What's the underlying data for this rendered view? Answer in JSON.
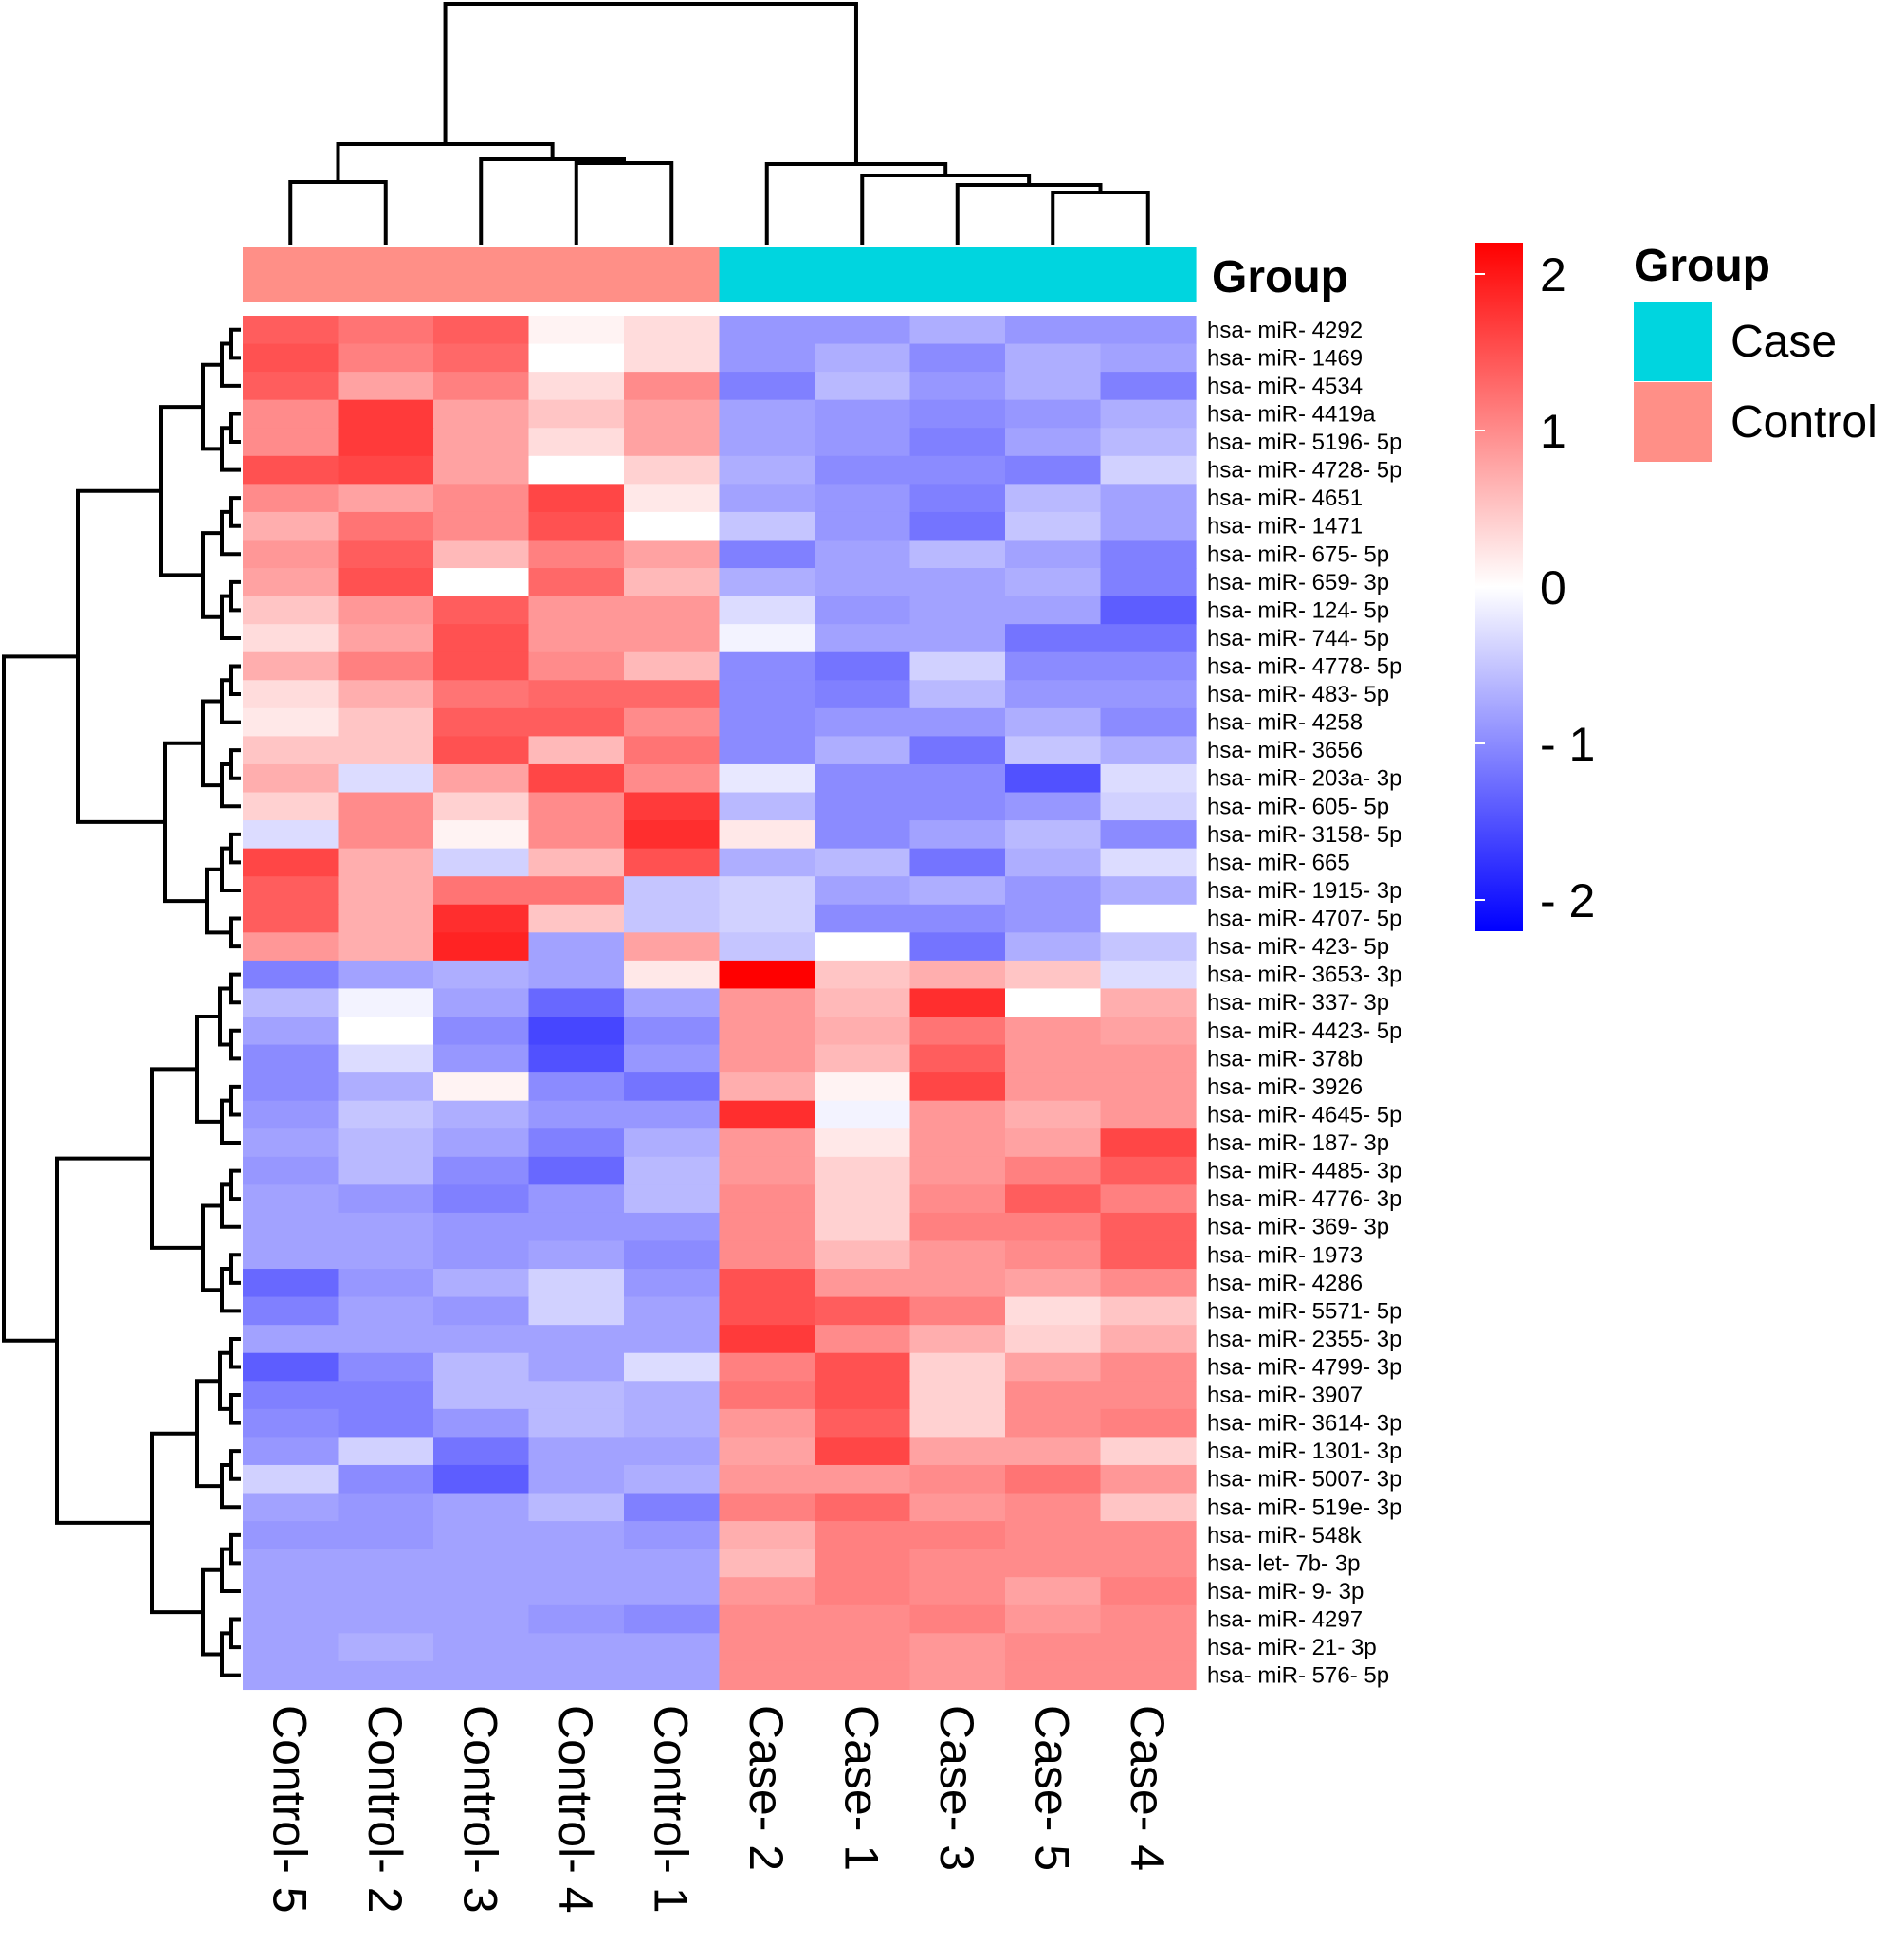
{
  "chart_data": {
    "type": "heatmap",
    "title": "",
    "columns": [
      "Control- 5",
      "Control- 2",
      "Control- 3",
      "Control- 4",
      "Control- 1",
      "Case- 2",
      "Case- 1",
      "Case- 3",
      "Case- 5",
      "Case- 4"
    ],
    "column_groups": [
      "Control",
      "Control",
      "Control",
      "Control",
      "Control",
      "Case",
      "Case",
      "Case",
      "Case",
      "Case"
    ],
    "rows": [
      "hsa- miR- 4292",
      "hsa- miR- 1469",
      "hsa- miR- 4534",
      "hsa- miR- 4419a",
      "hsa- miR- 5196- 5p",
      "hsa- miR- 4728- 5p",
      "hsa- miR- 4651",
      "hsa- miR- 1471",
      "hsa- miR- 675- 5p",
      "hsa- miR- 659- 3p",
      "hsa- miR- 124- 5p",
      "hsa- miR- 744- 5p",
      "hsa- miR- 4778- 5p",
      "hsa- miR- 483- 5p",
      "hsa- miR- 4258",
      "hsa- miR- 3656",
      "hsa- miR- 203a- 3p",
      "hsa- miR- 605- 5p",
      "hsa- miR- 3158- 5p",
      "hsa- miR- 665",
      "hsa- miR- 1915- 3p",
      "hsa- miR- 4707- 5p",
      "hsa- miR- 423- 5p",
      "hsa- miR- 3653- 3p",
      "hsa- miR- 337- 3p",
      "hsa- miR- 4423- 5p",
      "hsa- miR- 378b",
      "hsa- miR- 3926",
      "hsa- miR- 4645- 5p",
      "hsa- miR- 187- 3p",
      "hsa- miR- 4485- 3p",
      "hsa- miR- 4776- 3p",
      "hsa- miR- 369- 3p",
      "hsa- miR- 1973",
      "hsa- miR- 4286",
      "hsa- miR- 5571- 5p",
      "hsa- miR- 2355- 3p",
      "hsa- miR- 4799- 3p",
      "hsa- miR- 3907",
      "hsa- miR- 3614- 3p",
      "hsa- miR- 1301- 3p",
      "hsa- miR- 5007- 3p",
      "hsa- miR- 519e- 3p",
      "hsa- miR- 548k",
      "hsa- let- 7b- 3p",
      "hsa- miR- 9- 3p",
      "hsa- miR- 4297",
      "hsa- miR- 21- 3p",
      "hsa- miR- 576- 5p"
    ],
    "values": [
      [
        1.4,
        1.2,
        1.4,
        0.1,
        0.3,
        -0.9,
        -0.9,
        -0.7,
        -0.9,
        -0.9
      ],
      [
        1.5,
        1.1,
        1.3,
        0.0,
        0.3,
        -0.9,
        -0.7,
        -1.0,
        -0.7,
        -0.8
      ],
      [
        1.4,
        0.8,
        1.1,
        0.3,
        1.0,
        -1.1,
        -0.6,
        -0.9,
        -0.7,
        -1.1
      ],
      [
        1.0,
        1.7,
        0.8,
        0.5,
        0.8,
        -0.8,
        -0.9,
        -1.0,
        -0.9,
        -0.7
      ],
      [
        1.0,
        1.7,
        0.8,
        0.3,
        0.8,
        -0.8,
        -0.9,
        -1.1,
        -0.8,
        -0.6
      ],
      [
        1.5,
        1.6,
        0.8,
        0.0,
        0.4,
        -0.7,
        -1.0,
        -1.0,
        -1.1,
        -0.4
      ],
      [
        1.0,
        0.8,
        1.0,
        1.6,
        0.2,
        -0.8,
        -0.9,
        -1.1,
        -0.6,
        -0.8
      ],
      [
        0.7,
        1.2,
        1.0,
        1.5,
        0.0,
        -0.5,
        -0.9,
        -1.2,
        -0.5,
        -0.8
      ],
      [
        0.9,
        1.4,
        0.6,
        1.1,
        0.8,
        -1.1,
        -0.8,
        -0.6,
        -0.8,
        -1.1
      ],
      [
        0.8,
        1.5,
        0.0,
        1.3,
        0.6,
        -0.7,
        -0.8,
        -0.8,
        -0.7,
        -1.1
      ],
      [
        0.5,
        0.9,
        1.4,
        0.9,
        0.9,
        -0.3,
        -0.9,
        -0.8,
        -0.8,
        -1.4
      ],
      [
        0.3,
        0.8,
        1.5,
        0.9,
        0.9,
        -0.1,
        -0.8,
        -0.8,
        -1.2,
        -1.2
      ],
      [
        0.7,
        1.1,
        1.5,
        1.0,
        0.6,
        -1.0,
        -1.2,
        -0.4,
        -1.0,
        -1.0
      ],
      [
        0.3,
        0.7,
        1.2,
        1.3,
        1.3,
        -1.0,
        -1.1,
        -0.6,
        -0.9,
        -0.9
      ],
      [
        0.2,
        0.5,
        1.4,
        1.4,
        1.0,
        -1.0,
        -0.9,
        -0.9,
        -0.7,
        -1.0
      ],
      [
        0.5,
        0.5,
        1.5,
        0.6,
        1.2,
        -1.0,
        -0.7,
        -1.2,
        -0.5,
        -0.7
      ],
      [
        0.7,
        -0.3,
        0.8,
        1.6,
        1.0,
        -0.2,
        -1.0,
        -1.0,
        -1.5,
        -0.3
      ],
      [
        0.4,
        1.0,
        0.4,
        1.0,
        1.7,
        -0.6,
        -1.0,
        -1.0,
        -0.9,
        -0.4
      ],
      [
        -0.3,
        1.0,
        0.1,
        1.0,
        1.8,
        0.2,
        -1.0,
        -0.8,
        -0.6,
        -1.0
      ],
      [
        1.6,
        0.7,
        -0.4,
        0.6,
        1.5,
        -0.7,
        -0.6,
        -1.2,
        -0.7,
        -0.3
      ],
      [
        1.4,
        0.7,
        1.2,
        1.2,
        -0.5,
        -0.4,
        -0.8,
        -0.7,
        -0.9,
        -0.7
      ],
      [
        1.4,
        0.7,
        1.8,
        0.5,
        -0.5,
        -0.4,
        -1.0,
        -1.0,
        -0.9,
        0.0
      ],
      [
        0.9,
        0.7,
        1.9,
        -0.8,
        0.8,
        -0.5,
        0.0,
        -1.2,
        -0.7,
        -0.5
      ],
      [
        -1.1,
        -0.8,
        -0.7,
        -0.8,
        0.2,
        2.3,
        0.5,
        0.7,
        0.5,
        -0.3
      ],
      [
        -0.6,
        -0.1,
        -0.8,
        -1.3,
        -0.8,
        0.9,
        0.6,
        1.8,
        0.0,
        0.7
      ],
      [
        -0.8,
        0.0,
        -1.0,
        -1.6,
        -1.0,
        0.9,
        0.7,
        1.2,
        0.9,
        0.8
      ],
      [
        -1.0,
        -0.3,
        -0.9,
        -1.5,
        -0.9,
        0.9,
        0.6,
        1.4,
        0.9,
        0.9
      ],
      [
        -1.0,
        -0.7,
        0.1,
        -1.0,
        -1.2,
        0.7,
        0.1,
        1.6,
        0.9,
        0.9
      ],
      [
        -0.9,
        -0.5,
        -0.7,
        -0.9,
        -0.9,
        1.8,
        -0.1,
        0.9,
        0.7,
        0.9
      ],
      [
        -0.8,
        -0.6,
        -0.8,
        -1.1,
        -0.7,
        0.9,
        0.2,
        0.9,
        0.8,
        1.6
      ],
      [
        -0.9,
        -0.6,
        -1.0,
        -1.3,
        -0.6,
        0.9,
        0.4,
        0.9,
        1.1,
        1.4
      ],
      [
        -0.8,
        -0.9,
        -1.1,
        -0.9,
        -0.6,
        1.0,
        0.4,
        1.0,
        1.4,
        1.1
      ],
      [
        -0.8,
        -0.8,
        -0.9,
        -0.9,
        -0.9,
        1.0,
        0.4,
        1.1,
        1.1,
        1.4
      ],
      [
        -0.8,
        -0.8,
        -0.9,
        -0.8,
        -1.0,
        1.0,
        0.6,
        0.9,
        1.0,
        1.4
      ],
      [
        -1.3,
        -0.9,
        -0.7,
        -0.4,
        -0.9,
        1.5,
        0.9,
        0.9,
        0.8,
        1.0
      ],
      [
        -1.1,
        -0.8,
        -0.9,
        -0.4,
        -0.8,
        1.5,
        1.4,
        1.1,
        0.3,
        0.5
      ],
      [
        -0.8,
        -0.8,
        -0.8,
        -0.8,
        -0.8,
        1.7,
        1.0,
        0.7,
        0.4,
        0.7
      ],
      [
        -1.4,
        -1.0,
        -0.6,
        -0.8,
        -0.3,
        1.1,
        1.5,
        0.4,
        0.8,
        1.0
      ],
      [
        -1.1,
        -1.1,
        -0.6,
        -0.6,
        -0.7,
        1.2,
        1.5,
        0.4,
        1.0,
        1.0
      ],
      [
        -1.0,
        -1.1,
        -0.9,
        -0.6,
        -0.7,
        0.9,
        1.4,
        0.4,
        1.0,
        1.1
      ],
      [
        -0.9,
        -0.4,
        -1.2,
        -0.8,
        -0.8,
        0.8,
        1.6,
        0.8,
        0.8,
        0.4
      ],
      [
        -0.4,
        -1.0,
        -1.4,
        -0.8,
        -0.7,
        0.9,
        0.9,
        1.0,
        1.2,
        0.9
      ],
      [
        -0.8,
        -0.9,
        -0.8,
        -0.6,
        -1.1,
        1.1,
        1.3,
        0.9,
        1.0,
        0.5
      ],
      [
        -0.9,
        -0.9,
        -0.8,
        -0.8,
        -0.9,
        0.7,
        1.1,
        1.1,
        1.0,
        1.0
      ],
      [
        -0.8,
        -0.8,
        -0.8,
        -0.8,
        -0.8,
        0.6,
        1.1,
        1.0,
        1.0,
        1.0
      ],
      [
        -0.8,
        -0.8,
        -0.8,
        -0.8,
        -0.8,
        0.9,
        1.1,
        1.0,
        0.8,
        1.1
      ],
      [
        -0.8,
        -0.8,
        -0.8,
        -0.9,
        -1.0,
        1.0,
        1.0,
        1.1,
        0.9,
        1.0
      ],
      [
        -0.8,
        -0.7,
        -0.8,
        -0.8,
        -0.8,
        1.0,
        1.0,
        0.9,
        1.0,
        1.0
      ],
      [
        -0.8,
        -0.8,
        -0.8,
        -0.8,
        -0.8,
        1.0,
        1.0,
        0.9,
        1.0,
        1.0
      ]
    ],
    "color_scale": {
      "min": -2.2,
      "max": 2.2,
      "low": "#0000FF",
      "mid": "#FFFFFF",
      "high": "#FF0000"
    },
    "colorbar_ticks": [
      {
        "value": 2,
        "label": "2"
      },
      {
        "value": 1,
        "label": "1"
      },
      {
        "value": 0,
        "label": "0"
      },
      {
        "value": -1,
        "label": "- 1"
      },
      {
        "value": -2,
        "label": "- 2"
      }
    ],
    "annotation": {
      "name": "Group",
      "legend_title": "Group",
      "levels": [
        {
          "label": "Case",
          "color": "#00D5DF"
        },
        {
          "label": "Control",
          "color": "#FF8F87"
        }
      ]
    }
  }
}
